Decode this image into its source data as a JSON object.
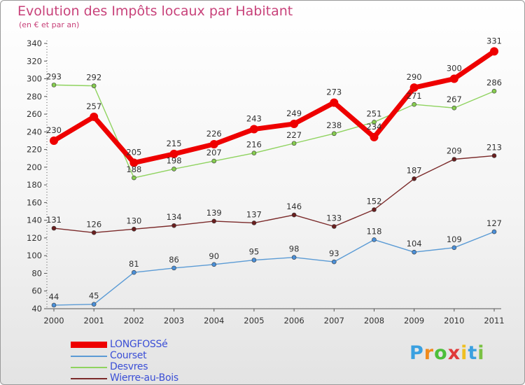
{
  "chart_data": {
    "type": "line",
    "title": "Evolution des Impôts locaux par Habitant",
    "subtitle": "(en € et par an)",
    "xlabel": "",
    "ylabel": "",
    "ylim": [
      40,
      340
    ],
    "yticks": [
      40,
      60,
      80,
      100,
      120,
      140,
      160,
      180,
      200,
      220,
      240,
      260,
      280,
      300,
      320,
      340
    ],
    "categories": [
      "2000",
      "2001",
      "2002",
      "2003",
      "2004",
      "2005",
      "2006",
      "2007",
      "2008",
      "2009",
      "2010",
      "2011"
    ],
    "grid": false,
    "legend_position": "bottom-left",
    "series": [
      {
        "name": "Courset",
        "color": "#5b9bd5",
        "point_color": "#4a8fd8",
        "values": [
          44,
          45,
          81,
          86,
          90,
          95,
          98,
          93,
          118,
          104,
          109,
          127
        ]
      },
      {
        "name": "Wierre-au-Bois",
        "color": "#7b2a2a",
        "point_color": "#6a1f1f",
        "values": [
          131,
          126,
          130,
          134,
          139,
          137,
          146,
          133,
          152,
          187,
          209,
          213
        ]
      },
      {
        "name": "Desvres",
        "color": "#8fd35f",
        "point_color": "#86cc4f",
        "values": [
          293,
          292,
          188,
          198,
          207,
          216,
          227,
          238,
          251,
          271,
          267,
          286
        ]
      },
      {
        "name": "LONGFOSSé",
        "color": "#ee0000",
        "point_color": "#ee0000",
        "values": [
          230,
          257,
          205,
          215,
          226,
          243,
          249,
          273,
          234,
          290,
          300,
          331
        ]
      }
    ],
    "legend_order": [
      "LONGFOSSé",
      "Courset",
      "Desvres",
      "Wierre-au-Bois"
    ]
  },
  "logo": {
    "letters": [
      "P",
      "r",
      "o",
      "x",
      "i",
      "t",
      "i"
    ],
    "colors": [
      "#3aa0e0",
      "#f08a1c",
      "#4cbf3a",
      "#e03a3a",
      "#f0c020",
      "#3aa0e0",
      "#7ac143"
    ]
  }
}
